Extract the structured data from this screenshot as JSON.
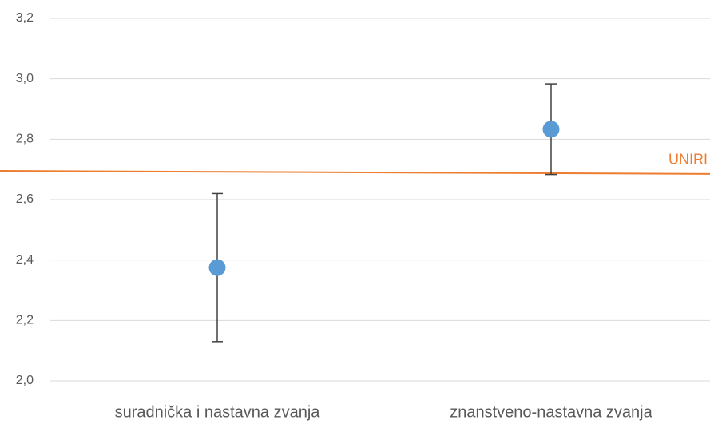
{
  "chart_data": {
    "type": "errorbar",
    "categories": [
      "suradnička i nastavna zvanja",
      "znanstveno-nastavna zvanja"
    ],
    "values": [
      2.375,
      2.833
    ],
    "errors": [
      0.245,
      0.15
    ],
    "color": "#5b9bd5",
    "reference_line": {
      "label": "UNIRI",
      "values": [
        2.695,
        2.685
      ],
      "color": "#ed7d31"
    },
    "ylim": [
      2.0,
      3.2
    ],
    "yticks": [
      {
        "value": 2.0,
        "label": "2,0"
      },
      {
        "value": 2.2,
        "label": "2,2"
      },
      {
        "value": 2.4,
        "label": "2,4"
      },
      {
        "value": 2.6,
        "label": "2,6"
      },
      {
        "value": 2.8,
        "label": "2,8"
      },
      {
        "value": 3.0,
        "label": "3,0"
      },
      {
        "value": 3.2,
        "label": "3,2"
      }
    ],
    "grid": true
  }
}
